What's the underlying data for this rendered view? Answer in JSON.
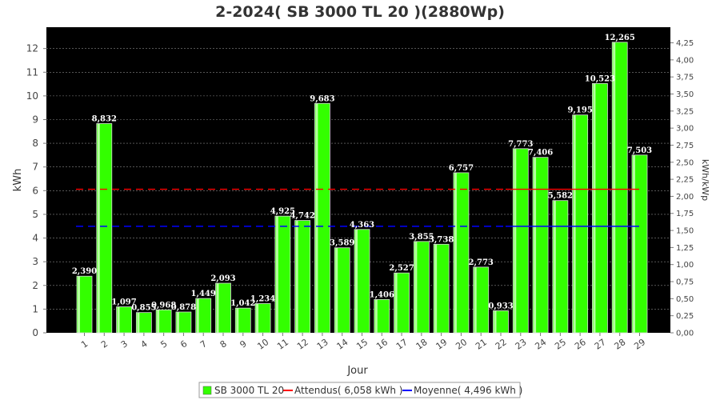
{
  "chart_data": {
    "type": "bar",
    "title": "2-2024( SB 3000 TL 20 )(2880Wp)",
    "xlabel": "Jour",
    "ylabel": "kWh",
    "y2label": "kWh/kWp",
    "categories": [
      "1",
      "2",
      "3",
      "4",
      "5",
      "6",
      "7",
      "8",
      "9",
      "10",
      "11",
      "12",
      "13",
      "14",
      "15",
      "16",
      "17",
      "18",
      "19",
      "20",
      "21",
      "22",
      "23",
      "24",
      "25",
      "26",
      "27",
      "28",
      "29"
    ],
    "series": [
      {
        "name": "SB 3000 TL 20",
        "color": "#33ff00",
        "values": [
          2.39,
          8.832,
          1.097,
          0.855,
          0.968,
          0.878,
          1.449,
          2.093,
          1.042,
          1.234,
          4.925,
          4.742,
          9.683,
          3.589,
          4.363,
          1.406,
          2.527,
          3.855,
          3.738,
          6.757,
          2.773,
          0.933,
          7.773,
          7.406,
          5.582,
          9.195,
          10.523,
          12.265,
          7.503
        ],
        "labels": [
          "2,390",
          "8,832",
          "1,097",
          "0,855",
          "0,968",
          "0,878",
          "1,449",
          "2,093",
          "1,042",
          "1,234",
          "4,925",
          "4,742",
          "9,683",
          "3,589",
          "4,363",
          "1,406",
          "2,527",
          "3,855",
          "3,738",
          "6,757",
          "2,773",
          "0,933",
          "7,773",
          "7,406",
          "5,582",
          "9,195",
          "10,523",
          "12,265",
          "7,503"
        ]
      }
    ],
    "reference_lines": [
      {
        "name": "Attendus( 6,058 kWh )",
        "value": 6.058,
        "color": "#ff0000"
      },
      {
        "name": "Moyenne( 4,496 kWh )",
        "value": 4.496,
        "color": "#0000ff"
      }
    ],
    "ylim": [
      0,
      12.9
    ],
    "yticks": [
      0,
      1,
      2,
      3,
      4,
      5,
      6,
      7,
      8,
      9,
      10,
      11,
      12
    ],
    "y2lim": [
      0,
      4.479
    ],
    "y2ticks": [
      "0,00",
      "0,25",
      "0,50",
      "0,75",
      "1,00",
      "1,25",
      "1,50",
      "1,75",
      "2,00",
      "2,25",
      "2,50",
      "2,75",
      "3,00",
      "3,25",
      "3,50",
      "3,75",
      "4,00",
      "4,25"
    ],
    "y2tick_values": [
      0,
      0.25,
      0.5,
      0.75,
      1,
      1.25,
      1.5,
      1.75,
      2,
      2.25,
      2.5,
      2.75,
      3,
      3.25,
      3.5,
      3.75,
      4,
      4.25
    ],
    "legend_position": "bottom",
    "grid": true,
    "plot_background": "#000000"
  }
}
